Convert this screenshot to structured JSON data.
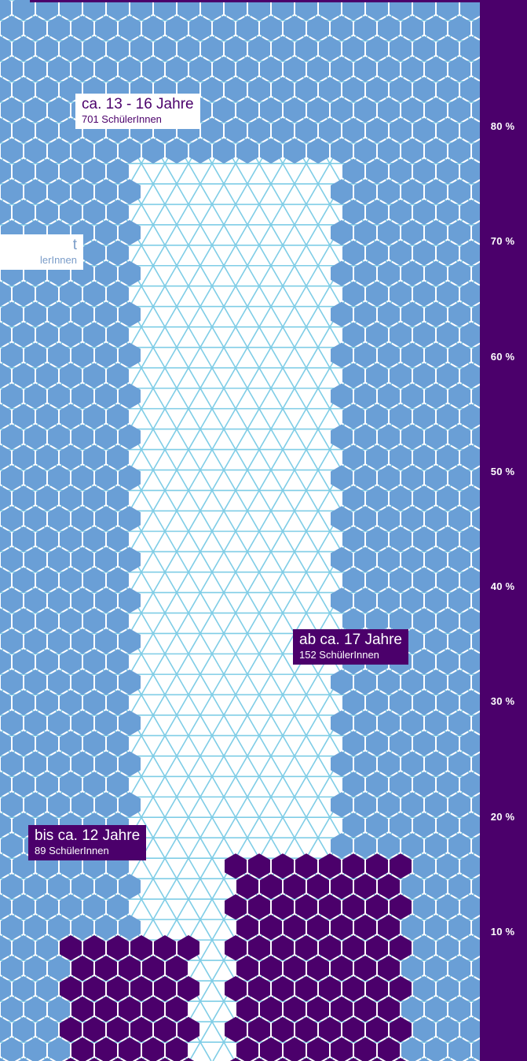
{
  "colors": {
    "blue": "#6a9fd6",
    "light_line": "#7fcde6",
    "purple": "#4b006b",
    "white": "#ffffff"
  },
  "labels": {
    "middle": {
      "title": "ca. 13 - 16 Jahre",
      "count": "701 SchülerInnen"
    },
    "older": {
      "title": "ab ca. 17 Jahre",
      "count": "152 SchülerInnen"
    },
    "younger": {
      "title": "bis ca. 12 Jahre",
      "count": "89 SchülerInnen"
    },
    "cut": {
      "title": "t",
      "count": "lerInnen"
    }
  },
  "chart_data": {
    "type": "area",
    "y_axis": {
      "unit": "%",
      "ticks": [
        "80 %",
        "70 %",
        "60 %",
        "50 %",
        "40 %",
        "30 %",
        "20 %",
        "10 %"
      ],
      "tick_values": [
        80,
        70,
        60,
        50,
        40,
        30,
        20,
        10
      ]
    },
    "series": [
      {
        "name": "bis ca. 12 Jahre",
        "count": 89,
        "color": "#4b006b"
      },
      {
        "name": "ca. 13 - 16 Jahre",
        "count": 701,
        "color": "#7fcde6"
      },
      {
        "name": "ab ca. 17 Jahre",
        "count": 152,
        "color": "#4b006b"
      }
    ],
    "legend": "inline-labels",
    "grid": false
  }
}
